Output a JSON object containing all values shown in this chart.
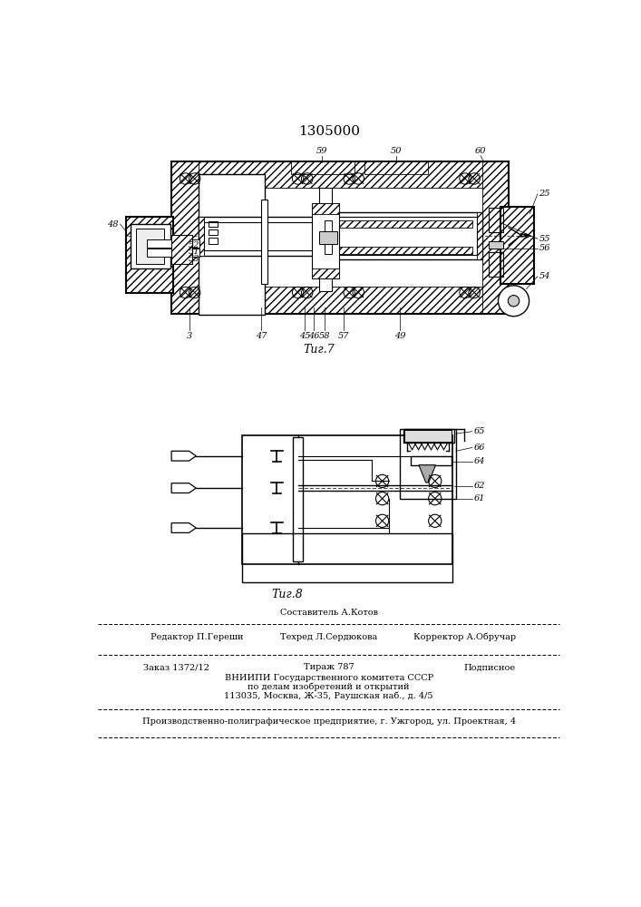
{
  "patent_number": "1305000",
  "fig7_caption": "Τиг.7",
  "fig8_caption": "Τиг.8",
  "bg_color": "#ffffff",
  "lc": "#000000",
  "footer": {
    "sestavitel": "Составитель А.Котов",
    "redaktor": "Редактор П.Гереши",
    "tehred": "Техред Л.Сердюкова",
    "korrektor": "Корректор А.Обручар",
    "zakaz": "Заказ 1372/12",
    "tirazh": "Тираж 787",
    "podpisnoe": "Подписное",
    "vniipи1": "ВНИИПИ Государственного комитета СССР",
    "vniipи2": "по делам изобретений и открытий",
    "vniipи3": "113035, Москва, Ж-35, Раушская наб., д. 4/5",
    "proizv": "Производственно-полиграфическое предприятие, г. Ужгород, ул. Проектная, 4"
  }
}
